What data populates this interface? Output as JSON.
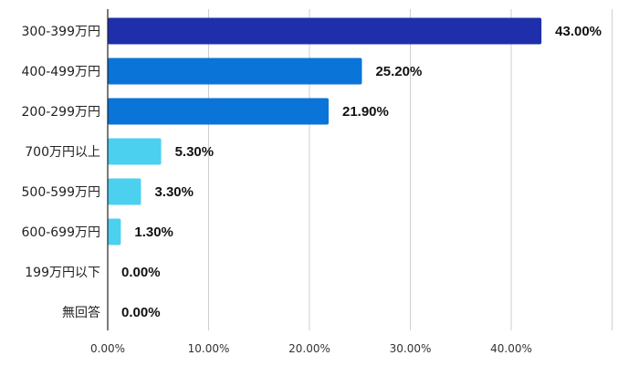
{
  "chart_data": {
    "type": "bar",
    "orientation": "horizontal",
    "title": "",
    "xlabel": "",
    "ylabel": "",
    "categories": [
      "300-399万円",
      "400-499万円",
      "200-299万円",
      "700万円以上",
      "500-599万円",
      "600-699万円",
      "199万円以下",
      "無回答"
    ],
    "values": [
      43.0,
      25.2,
      21.9,
      5.3,
      3.3,
      1.3,
      0.0,
      0.0
    ],
    "value_labels": [
      "43.00%",
      "25.20%",
      "21.90%",
      "5.30%",
      "3.30%",
      "1.30%",
      "0.00%",
      "0.00%"
    ],
    "bar_colors": [
      "#1f2fab",
      "#0a74d9",
      "#0a74d9",
      "#4bd0ef",
      "#4bd0ef",
      "#4bd0ef",
      "#4bd0ef",
      "#4bd0ef"
    ],
    "xlim": [
      0,
      50
    ],
    "xticks": [
      0,
      10,
      20,
      30,
      40
    ],
    "xtick_labels": [
      "0.00%",
      "10.00%",
      "20.00%",
      "30.00%",
      "40.00%"
    ],
    "grid": true,
    "legend": "none"
  }
}
